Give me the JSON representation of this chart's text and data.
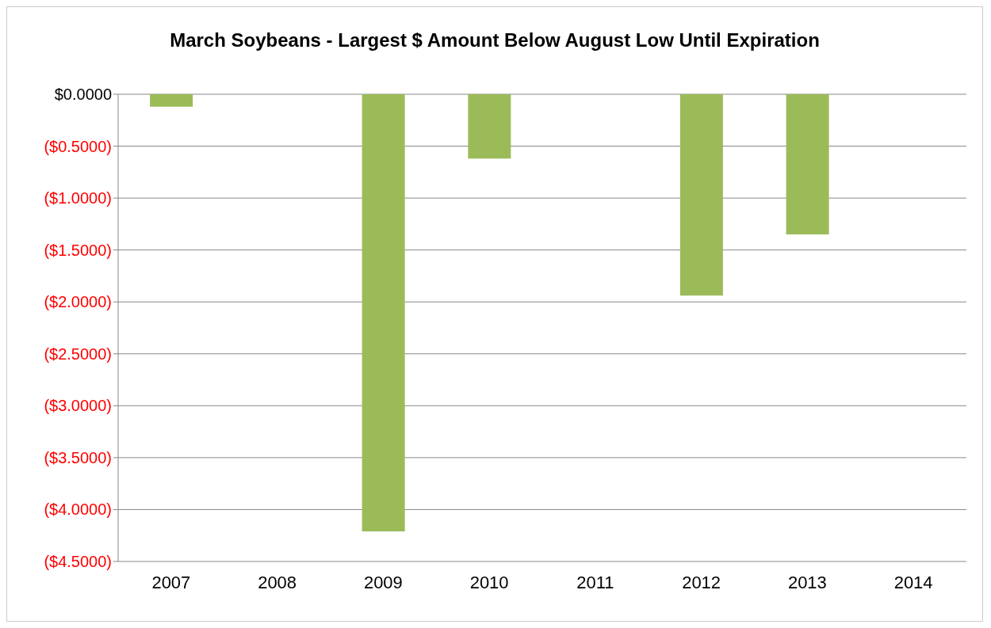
{
  "chart_data": {
    "type": "bar",
    "title": "March Soybeans - Largest $ Amount Below August Low Until Expiration",
    "categories": [
      "2007",
      "2008",
      "2009",
      "2010",
      "2011",
      "2012",
      "2013",
      "2014"
    ],
    "values": [
      -0.12,
      0,
      -4.21,
      -0.62,
      0,
      -1.94,
      -1.35,
      0
    ],
    "color": "#9bbb59",
    "ylim": [
      -4.5,
      0
    ],
    "yticks": [
      {
        "value": 0,
        "label": "$0.0000"
      },
      {
        "value": -0.5,
        "label": "($0.5000)"
      },
      {
        "value": -1,
        "label": "($1.0000)"
      },
      {
        "value": -1.5,
        "label": "($1.5000)"
      },
      {
        "value": -2,
        "label": "($2.0000)"
      },
      {
        "value": -2.5,
        "label": "($2.5000)"
      },
      {
        "value": -3,
        "label": "($3.0000)"
      },
      {
        "value": -3.5,
        "label": "($3.5000)"
      },
      {
        "value": -4,
        "label": "($4.0000)"
      },
      {
        "value": -4.5,
        "label": "($4.5000)"
      }
    ],
    "grid": "y"
  }
}
